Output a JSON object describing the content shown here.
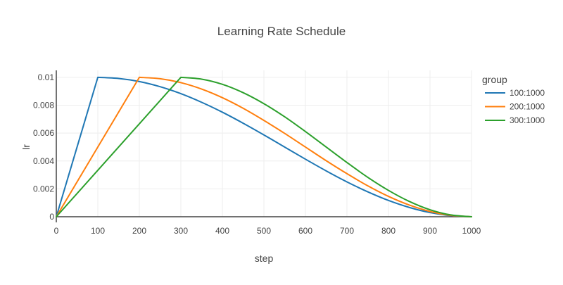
{
  "chart_data": {
    "type": "line",
    "title": "Learning Rate Schedule",
    "xlabel": "step",
    "ylabel": "lr",
    "xlim": [
      0,
      1000
    ],
    "ylim": [
      0,
      0.0105
    ],
    "x_ticks": [
      0,
      100,
      200,
      300,
      400,
      500,
      600,
      700,
      800,
      900,
      1000
    ],
    "x_tick_labels": [
      "0",
      "100",
      "200",
      "300",
      "400",
      "500",
      "600",
      "700",
      "800",
      "900",
      "1000"
    ],
    "y_ticks": [
      0,
      0.002,
      0.004,
      0.006,
      0.008,
      0.01
    ],
    "y_tick_labels": [
      "0",
      "0.002",
      "0.004",
      "0.006",
      "0.008",
      "0.01"
    ],
    "grid": true,
    "legend": {
      "title": "group",
      "placement": "top-right"
    },
    "series": [
      {
        "name": "100:1000",
        "color": "#1f77b4",
        "x": [
          0,
          100,
          150,
          200,
          250,
          300,
          350,
          400,
          450,
          500,
          550,
          600,
          650,
          700,
          750,
          800,
          850,
          900,
          950,
          1000
        ],
        "values": [
          0,
          0.01,
          0.00992,
          0.0097,
          0.00933,
          0.00883,
          0.00821,
          0.0075,
          0.00671,
          0.00587,
          0.005,
          0.00413,
          0.00329,
          0.0025,
          0.00179,
          0.00117,
          0.00067,
          0.0003,
          8e-05,
          0
        ]
      },
      {
        "name": "200:1000",
        "color": "#ff7f0e",
        "x": [
          0,
          200,
          250,
          300,
          350,
          400,
          450,
          500,
          550,
          600,
          650,
          700,
          750,
          800,
          850,
          900,
          950,
          1000
        ],
        "values": [
          0,
          0.01,
          0.0099,
          0.00962,
          0.00916,
          0.00854,
          0.00778,
          0.00691,
          0.00598,
          0.005,
          0.00402,
          0.00309,
          0.00222,
          0.00146,
          0.00084,
          0.00038,
          0.0001,
          0
        ]
      },
      {
        "name": "300:1000",
        "color": "#2ca02c",
        "x": [
          0,
          300,
          350,
          400,
          450,
          500,
          550,
          600,
          650,
          700,
          750,
          800,
          850,
          900,
          950,
          1000
        ],
        "values": [
          0,
          0.01,
          0.00987,
          0.0095,
          0.0089,
          0.00811,
          0.00717,
          0.00611,
          0.005,
          0.00389,
          0.00283,
          0.00189,
          0.0011,
          0.0005,
          0.00013,
          0
        ]
      }
    ]
  }
}
